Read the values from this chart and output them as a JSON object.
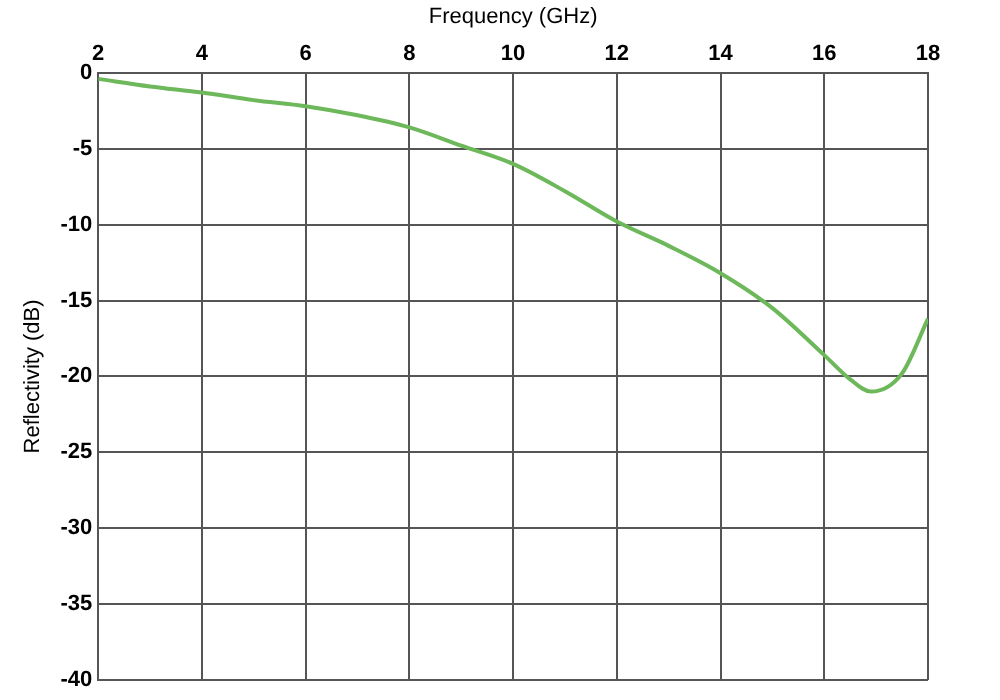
{
  "chart_data": {
    "type": "line",
    "xlabel": "Frequency (GHz)",
    "ylabel": "Reflectivity (dB)",
    "x": [
      2,
      3,
      4,
      5,
      6,
      7,
      8,
      9,
      10,
      11,
      12,
      13,
      14,
      15,
      16,
      16.5,
      16.9,
      17.5,
      18
    ],
    "series": [
      {
        "color": "#6db85a",
        "values": [
          -0.4,
          -0.9,
          -1.3,
          -1.8,
          -2.2,
          -2.8,
          -3.6,
          -4.8,
          -6.0,
          -7.8,
          -9.8,
          -11.4,
          -13.2,
          -15.5,
          -18.6,
          -20.2,
          -21.0,
          -19.8,
          -16.2
        ]
      }
    ],
    "xlim": [
      2,
      18
    ],
    "xticks": [
      2,
      4,
      6,
      8,
      10,
      12,
      14,
      16,
      18
    ],
    "ylim": [
      -40,
      0
    ],
    "yticks": [
      -40,
      -35,
      -30,
      -25,
      -20,
      -15,
      -10,
      -5,
      0
    ],
    "grid": true,
    "legend": false,
    "marker": "none",
    "line_style": "solid"
  }
}
